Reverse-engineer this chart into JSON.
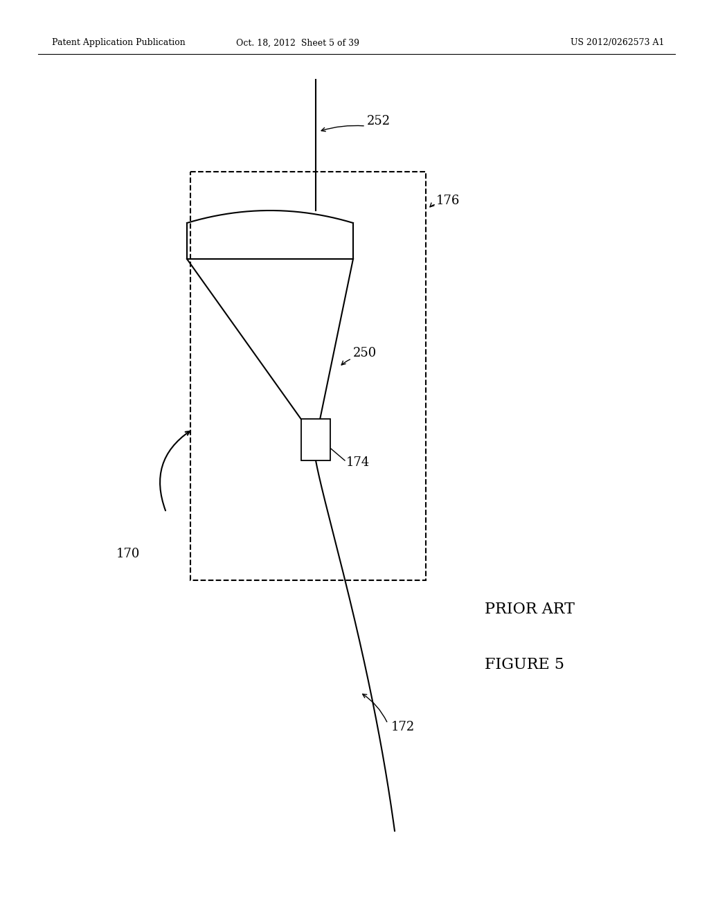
{
  "bg_color": "#ffffff",
  "line_color": "#000000",
  "header_left": "Patent Application Publication",
  "header_mid": "Oct. 18, 2012  Sheet 5 of 39",
  "header_right": "US 2012/0262573 A1",
  "footer_label1": "PRIOR ART",
  "footer_label2": "FIGURE 5",
  "label_170": "170",
  "label_172": "172",
  "label_174": "174",
  "label_176": "176",
  "label_250": "250",
  "label_252": "252"
}
